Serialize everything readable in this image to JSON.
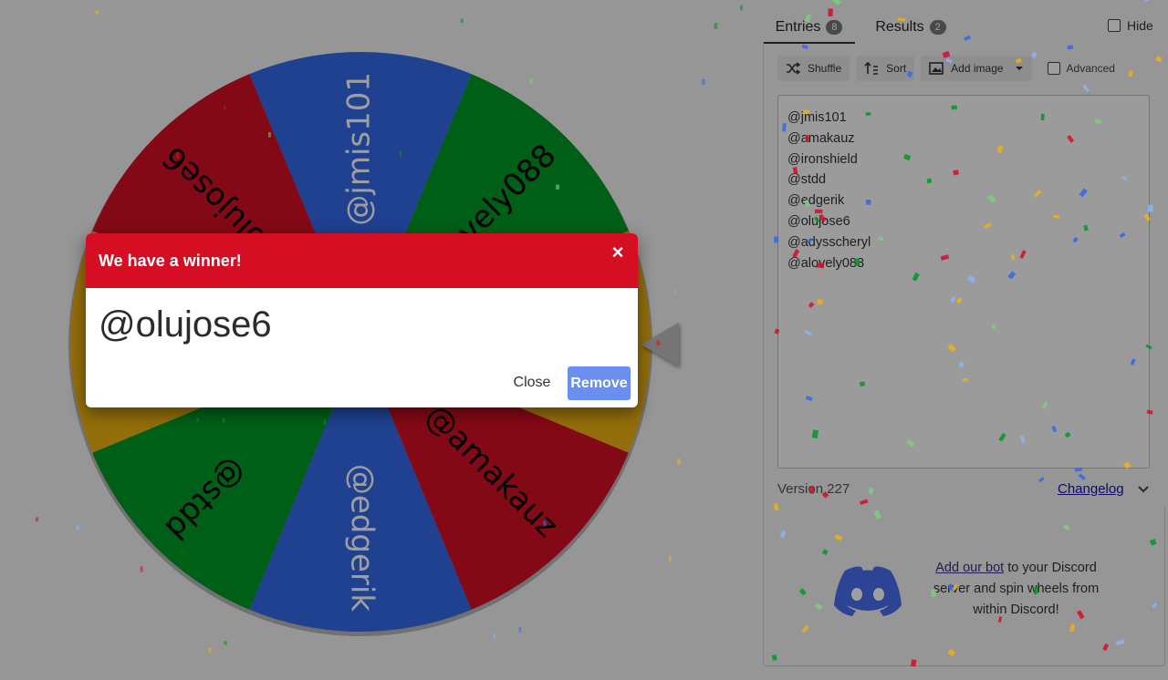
{
  "wheel": {
    "segments": [
      {
        "label": "@jmis101",
        "color": "#3369e8"
      },
      {
        "label": "@alovely088",
        "color": "#009925"
      },
      {
        "label": "@adysscheryl",
        "color": "#eeb211"
      },
      {
        "label": "@amakauz",
        "color": "#d50f25"
      },
      {
        "label": "@edgerik",
        "color": "#3369e8"
      },
      {
        "label": "@stdd",
        "color": "#009925"
      },
      {
        "label": "@ironshield",
        "color": "#eeb211"
      },
      {
        "label": "@olujose6",
        "color": "#d50f25"
      }
    ]
  },
  "tabs": {
    "entries_label": "Entries",
    "entries_count": "8",
    "results_label": "Results",
    "results_count": "2",
    "hide_label": "Hide"
  },
  "toolbar": {
    "shuffle_label": "Shuffle",
    "sort_label": "Sort",
    "add_image_label": "Add image",
    "advanced_label": "Advanced"
  },
  "entries": [
    "@jmis101",
    "@amakauz",
    "@ironshield",
    "@stdd",
    "@edgerik",
    "@olujose6",
    "@adysscheryl",
    "@alovely088"
  ],
  "footer": {
    "version": "Version 227",
    "changelog": "Changelog",
    "discord_link": "Add our bot",
    "discord_text": " to your Discord server and spin wheels from within Discord!"
  },
  "dialog": {
    "title": "We have a winner!",
    "winner": "@olujose6",
    "close_label": "Close",
    "remove_label": "Remove"
  },
  "colors": {
    "header_red": "#d50e24",
    "remove_blue": "#6b8ff0"
  }
}
